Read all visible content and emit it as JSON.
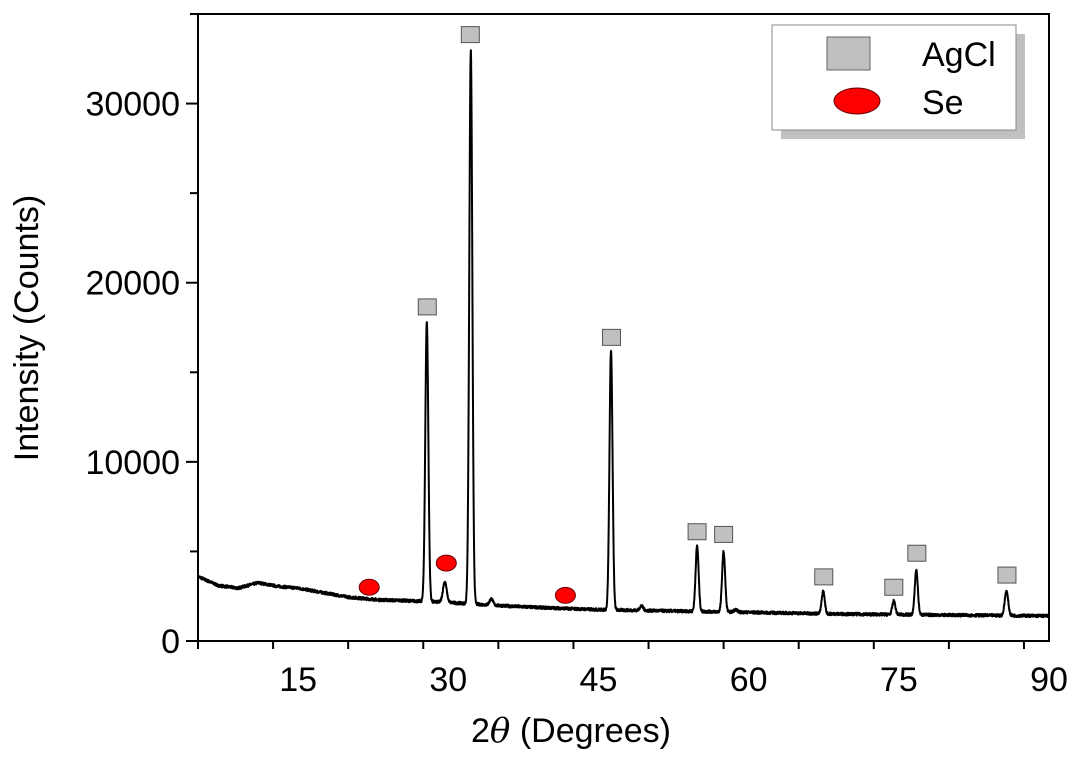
{
  "chart_data": {
    "type": "line",
    "title": "",
    "xlabel_prefix": "2",
    "xlabel_symbol": "θ",
    "xlabel_suffix": " (Degrees)",
    "ylabel": "Intensity (Counts)",
    "xlim": [
      5,
      90
    ],
    "ylim": [
      0,
      35000
    ],
    "xticks": [
      15,
      30,
      45,
      60,
      75,
      90
    ],
    "yticks": [
      0,
      10000,
      20000,
      30000
    ],
    "grid": false,
    "line_color": "#000000",
    "background": [
      [
        5,
        3600
      ],
      [
        7,
        3100
      ],
      [
        9,
        2950
      ],
      [
        11,
        3250
      ],
      [
        13,
        3050
      ],
      [
        15,
        2950
      ],
      [
        18,
        2650
      ],
      [
        20,
        2450
      ],
      [
        23,
        2300
      ],
      [
        26,
        2250
      ],
      [
        30,
        2150
      ],
      [
        33,
        2050
      ],
      [
        36,
        1950
      ],
      [
        40,
        1850
      ],
      [
        45,
        1750
      ],
      [
        50,
        1700
      ],
      [
        55,
        1650
      ],
      [
        60,
        1600
      ],
      [
        70,
        1500
      ],
      [
        80,
        1450
      ],
      [
        90,
        1400
      ]
    ],
    "peaks": [
      {
        "x": 27.85,
        "height": 15600,
        "width": 0.18
      },
      {
        "x": 29.65,
        "height": 1150,
        "width": 0.22
      },
      {
        "x": 32.25,
        "height": 30900,
        "width": 0.18
      },
      {
        "x": 34.3,
        "height": 350,
        "width": 0.2
      },
      {
        "x": 46.25,
        "height": 14500,
        "width": 0.18
      },
      {
        "x": 49.3,
        "height": 250,
        "width": 0.2
      },
      {
        "x": 54.85,
        "height": 3650,
        "width": 0.18
      },
      {
        "x": 57.5,
        "height": 3350,
        "width": 0.18
      },
      {
        "x": 58.7,
        "height": 150,
        "width": 0.2
      },
      {
        "x": 67.45,
        "height": 1250,
        "width": 0.18
      },
      {
        "x": 74.5,
        "height": 750,
        "width": 0.18
      },
      {
        "x": 76.75,
        "height": 2500,
        "width": 0.18
      },
      {
        "x": 85.75,
        "height": 1350,
        "width": 0.2
      }
    ],
    "markers": {
      "AgCl": {
        "shape": "square",
        "color": "#c0c0c0",
        "points": [
          [
            27.9,
            18650
          ],
          [
            32.2,
            33850
          ],
          [
            46.3,
            16950
          ],
          [
            54.85,
            6100
          ],
          [
            57.5,
            5950
          ],
          [
            67.5,
            3580
          ],
          [
            74.5,
            3000
          ],
          [
            76.8,
            4900
          ],
          [
            85.8,
            3680
          ]
        ]
      },
      "Se": {
        "shape": "ellipse",
        "color": "#ff0000",
        "points": [
          [
            22.1,
            3000
          ],
          [
            29.8,
            4350
          ],
          [
            41.7,
            2550
          ]
        ]
      }
    },
    "legend": {
      "position": "top-right",
      "entries": [
        "AgCl",
        "Se"
      ]
    }
  }
}
